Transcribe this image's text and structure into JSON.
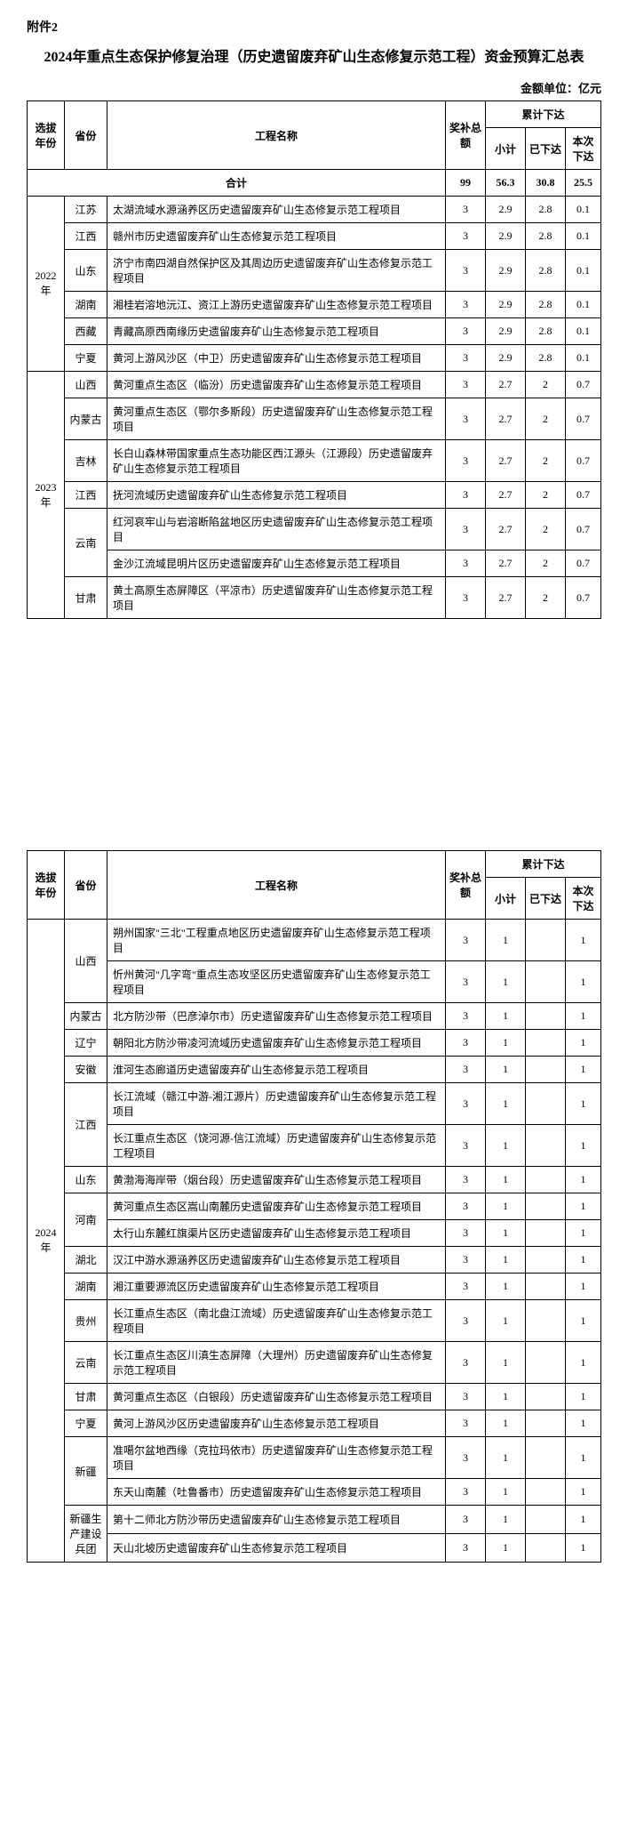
{
  "attachment": "附件2",
  "title": "2024年重点生态保护修复治理（历史遗留废弃矿山生态修复示范工程）资金预算汇总表",
  "unit_label": "金额单位：亿元",
  "headers": {
    "year": "选拔年份",
    "province": "省份",
    "project": "工程名称",
    "award": "奖补总额",
    "cumulative": "累计下达",
    "subtotal": "小计",
    "allocated": "已下达",
    "this_time": "本次下达",
    "total_row": "合计"
  },
  "totals": {
    "award": "99",
    "subtotal": "56.3",
    "allocated": "30.8",
    "this_time": "25.5"
  },
  "groups_page1": [
    {
      "year": "2022年",
      "rows": [
        {
          "prov": "江苏",
          "name": "太湖流域水源涵养区历史遗留废弃矿山生态修复示范工程项目",
          "a": "3",
          "s": "2.9",
          "d": "2.8",
          "t": "0.1"
        },
        {
          "prov": "江西",
          "name": "赣州市历史遗留废弃矿山生态修复示范工程项目",
          "a": "3",
          "s": "2.9",
          "d": "2.8",
          "t": "0.1"
        },
        {
          "prov": "山东",
          "name": "济宁市南四湖自然保护区及其周边历史遗留废弃矿山生态修复示范工程项目",
          "a": "3",
          "s": "2.9",
          "d": "2.8",
          "t": "0.1"
        },
        {
          "prov": "湖南",
          "name": "湘桂岩溶地沅江、资江上游历史遗留废弃矿山生态修复示范工程项目",
          "a": "3",
          "s": "2.9",
          "d": "2.8",
          "t": "0.1"
        },
        {
          "prov": "西藏",
          "name": "青藏高原西南缘历史遗留废弃矿山生态修复示范工程项目",
          "a": "3",
          "s": "2.9",
          "d": "2.8",
          "t": "0.1"
        },
        {
          "prov": "宁夏",
          "name": "黄河上游风沙区（中卫）历史遗留废弃矿山生态修复示范工程项目",
          "a": "3",
          "s": "2.9",
          "d": "2.8",
          "t": "0.1"
        }
      ]
    },
    {
      "year": "2023年",
      "rows": [
        {
          "prov": "山西",
          "name": "黄河重点生态区（临汾）历史遗留废弃矿山生态修复示范工程项目",
          "a": "3",
          "s": "2.7",
          "d": "2",
          "t": "0.7"
        },
        {
          "prov": "内蒙古",
          "name": "黄河重点生态区（鄂尔多斯段）历史遗留废弃矿山生态修复示范工程项目",
          "a": "3",
          "s": "2.7",
          "d": "2",
          "t": "0.7"
        },
        {
          "prov": "吉林",
          "name": "长白山森林带国家重点生态功能区西江源头（江源段）历史遗留废弃矿山生态修复示范工程项目",
          "a": "3",
          "s": "2.7",
          "d": "2",
          "t": "0.7"
        },
        {
          "prov": "江西",
          "name": "抚河流域历史遗留废弃矿山生态修复示范工程项目",
          "a": "3",
          "s": "2.7",
          "d": "2",
          "t": "0.7"
        },
        {
          "prov": "云南",
          "prov_rowspan": 2,
          "name": "红河哀牢山与岩溶断陷盆地区历史遗留废弃矿山生态修复示范工程项目",
          "a": "3",
          "s": "2.7",
          "d": "2",
          "t": "0.7"
        },
        {
          "name": "金沙江流域昆明片区历史遗留废弃矿山生态修复示范工程项目",
          "a": "3",
          "s": "2.7",
          "d": "2",
          "t": "0.7"
        },
        {
          "prov": "甘肃",
          "name": "黄土高原生态屏障区（平凉市）历史遗留废弃矿山生态修复示范工程项目",
          "a": "3",
          "s": "2.7",
          "d": "2",
          "t": "0.7"
        }
      ]
    }
  ],
  "groups_page2": [
    {
      "year": "2024年",
      "rows": [
        {
          "prov": "山西",
          "prov_rowspan": 2,
          "name": "朔州国家\"三北\"工程重点地区历史遗留废弃矿山生态修复示范工程项目",
          "a": "3",
          "s": "1",
          "d": "",
          "t": "1"
        },
        {
          "name": "忻州黄河\"几字弯\"重点生态攻坚区历史遗留废弃矿山生态修复示范工程项目",
          "a": "3",
          "s": "1",
          "d": "",
          "t": "1"
        },
        {
          "prov": "内蒙古",
          "name": "北方防沙带（巴彦淖尔市）历史遗留废弃矿山生态修复示范工程项目",
          "a": "3",
          "s": "1",
          "d": "",
          "t": "1"
        },
        {
          "prov": "辽宁",
          "name": "朝阳北方防沙带凌河流域历史遗留废弃矿山生态修复示范工程项目",
          "a": "3",
          "s": "1",
          "d": "",
          "t": "1"
        },
        {
          "prov": "安徽",
          "name": "淮河生态廊道历史遗留废弃矿山生态修复示范工程项目",
          "a": "3",
          "s": "1",
          "d": "",
          "t": "1"
        },
        {
          "prov": "江西",
          "prov_rowspan": 2,
          "name": "长江流域（赣江中游-湘江源片）历史遗留废弃矿山生态修复示范工程项目",
          "a": "3",
          "s": "1",
          "d": "",
          "t": "1"
        },
        {
          "name": "长江重点生态区（饶河源-信江流域）历史遗留废弃矿山生态修复示范工程项目",
          "a": "3",
          "s": "1",
          "d": "",
          "t": "1"
        },
        {
          "prov": "山东",
          "name": "黄渤海海岸带（烟台段）历史遗留废弃矿山生态修复示范工程项目",
          "a": "3",
          "s": "1",
          "d": "",
          "t": "1"
        },
        {
          "prov": "河南",
          "prov_rowspan": 2,
          "name": "黄河重点生态区嵩山南麓历史遗留废弃矿山生态修复示范工程项目",
          "a": "3",
          "s": "1",
          "d": "",
          "t": "1"
        },
        {
          "name": "太行山东麓红旗渠片区历史遗留废弃矿山生态修复示范工程项目",
          "a": "3",
          "s": "1",
          "d": "",
          "t": "1"
        },
        {
          "prov": "湖北",
          "name": "汉江中游水源涵养区历史遗留废弃矿山生态修复示范工程项目",
          "a": "3",
          "s": "1",
          "d": "",
          "t": "1"
        },
        {
          "prov": "湖南",
          "name": "湘江重要源流区历史遗留废弃矿山生态修复示范工程项目",
          "a": "3",
          "s": "1",
          "d": "",
          "t": "1"
        },
        {
          "prov": "贵州",
          "name": "长江重点生态区（南北盘江流域）历史遗留废弃矿山生态修复示范工程项目",
          "a": "3",
          "s": "1",
          "d": "",
          "t": "1"
        },
        {
          "prov": "云南",
          "name": "长江重点生态区川滇生态屏障（大理州）历史遗留废弃矿山生态修复示范工程项目",
          "a": "3",
          "s": "1",
          "d": "",
          "t": "1"
        },
        {
          "prov": "甘肃",
          "name": "黄河重点生态区（白银段）历史遗留废弃矿山生态修复示范工程项目",
          "a": "3",
          "s": "1",
          "d": "",
          "t": "1"
        },
        {
          "prov": "宁夏",
          "name": "黄河上游风沙区历史遗留废弃矿山生态修复示范工程项目",
          "a": "3",
          "s": "1",
          "d": "",
          "t": "1"
        },
        {
          "prov": "新疆",
          "prov_rowspan": 2,
          "name": "准噶尔盆地西缘（克拉玛依市）历史遗留废弃矿山生态修复示范工程项目",
          "a": "3",
          "s": "1",
          "d": "",
          "t": "1"
        },
        {
          "name": "东天山南麓（吐鲁番市）历史遗留废弃矿山生态修复示范工程项目",
          "a": "3",
          "s": "1",
          "d": "",
          "t": "1"
        },
        {
          "prov": "新疆生产建设兵团",
          "prov_rowspan": 2,
          "name": "第十二师北方防沙带历史遗留废弃矿山生态修复示范工程项目",
          "a": "3",
          "s": "1",
          "d": "",
          "t": "1"
        },
        {
          "name": "天山北坡历史遗留废弃矿山生态修复示范工程项目",
          "a": "3",
          "s": "1",
          "d": "",
          "t": "1"
        }
      ]
    }
  ]
}
